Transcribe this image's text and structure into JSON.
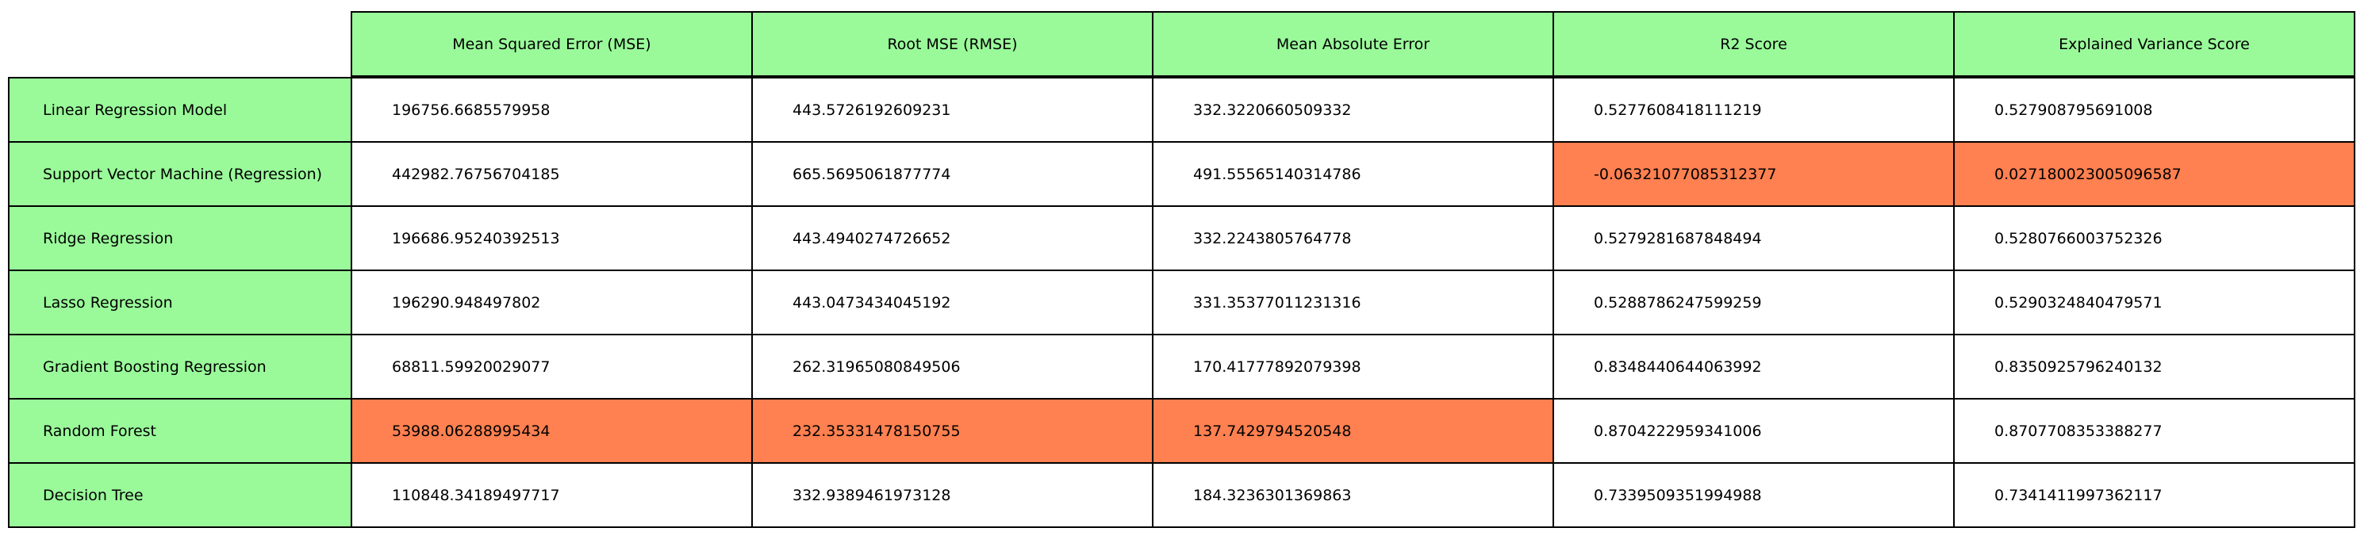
{
  "colors": {
    "header": "#9afa9a",
    "highlight": "#ff8050",
    "plain": "#ffffff"
  },
  "chart_data": {
    "type": "table",
    "columns": [
      "Mean Squared Error (MSE)",
      "Root MSE (RMSE)",
      "Mean Absolute Error",
      "R2 Score",
      "Explained Variance Score"
    ],
    "rows": [
      {
        "label": "Linear Regression Model",
        "values": [
          "196756.6685579958",
          "443.5726192609231",
          "332.3220660509332",
          "0.5277608418111219",
          "0.527908795691008"
        ],
        "highlight": [
          false,
          false,
          false,
          false,
          false
        ]
      },
      {
        "label": "Support Vector Machine (Regression)",
        "values": [
          "442982.76756704185",
          "665.5695061877774",
          "491.55565140314786",
          "-0.06321077085312377",
          "0.027180023005096587"
        ],
        "highlight": [
          false,
          false,
          false,
          true,
          true
        ]
      },
      {
        "label": "Ridge Regression",
        "values": [
          "196686.95240392513",
          "443.4940274726652",
          "332.2243805764778",
          "0.5279281687848494",
          "0.5280766003752326"
        ],
        "highlight": [
          false,
          false,
          false,
          false,
          false
        ]
      },
      {
        "label": "Lasso Regression",
        "values": [
          "196290.948497802",
          "443.0473434045192",
          "331.35377011231316",
          "0.5288786247599259",
          "0.5290324840479571"
        ],
        "highlight": [
          false,
          false,
          false,
          false,
          false
        ]
      },
      {
        "label": "Gradient Boosting Regression",
        "values": [
          "68811.59920029077",
          "262.31965080849506",
          "170.41777892079398",
          "0.8348440644063992",
          "0.8350925796240132"
        ],
        "highlight": [
          false,
          false,
          false,
          false,
          false
        ]
      },
      {
        "label": "Random Forest",
        "values": [
          "53988.06288995434",
          "232.35331478150755",
          "137.7429794520548",
          "0.8704222959341006",
          "0.8707708353388277"
        ],
        "highlight": [
          true,
          true,
          true,
          false,
          false
        ]
      },
      {
        "label": "Decision Tree",
        "values": [
          "110848.34189497717",
          "332.9389461973128",
          "184.3236301369863",
          "0.7339509351994988",
          "0.7341411997362117"
        ],
        "highlight": [
          false,
          false,
          false,
          false,
          false
        ]
      }
    ]
  }
}
